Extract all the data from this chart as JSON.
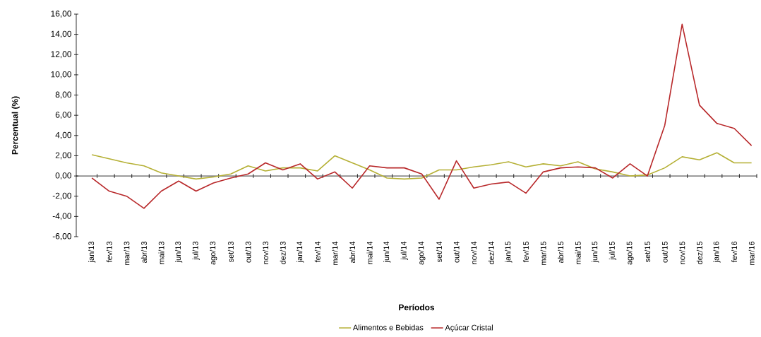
{
  "chart_data": {
    "type": "line",
    "xlabel": "Períodos",
    "ylabel": "Percentual (%)",
    "categories": [
      "jan/13",
      "fev/13",
      "mar/13",
      "abr/13",
      "mai/13",
      "jun/13",
      "jul/13",
      "ago/13",
      "set/13",
      "out/13",
      "nov/13",
      "dez/13",
      "jan/14",
      "fev/14",
      "mar/14",
      "abr/14",
      "mai/14",
      "jun/14",
      "jul/14",
      "ago/14",
      "set/14",
      "out/14",
      "nov/14",
      "dez/14",
      "jan/15",
      "fev/15",
      "mar/15",
      "abr/15",
      "mai/15",
      "jun/15",
      "jul/15",
      "ago/15",
      "set/15",
      "out/15",
      "nov/15",
      "dez/15",
      "jan/16",
      "fev/16",
      "mar/16"
    ],
    "series": [
      {
        "name": "Alimentos e Bebidas",
        "color": "#b5b035",
        "values": [
          2.1,
          1.7,
          1.3,
          1.0,
          0.3,
          0.0,
          -0.3,
          -0.1,
          0.2,
          1.0,
          0.5,
          0.8,
          0.8,
          0.5,
          2.0,
          1.3,
          0.6,
          -0.2,
          -0.3,
          -0.2,
          0.6,
          0.6,
          0.9,
          1.1,
          1.4,
          0.9,
          1.2,
          1.0,
          1.4,
          0.7,
          0.4,
          0.0,
          0.1,
          0.8,
          1.9,
          1.6,
          2.3,
          1.3,
          1.3
        ]
      },
      {
        "name": "Açúcar Cristal",
        "color": "#b8282a",
        "values": [
          -0.2,
          -1.5,
          -2.0,
          -3.2,
          -1.5,
          -0.5,
          -1.5,
          -0.7,
          -0.2,
          0.2,
          1.3,
          0.6,
          1.2,
          -0.3,
          0.4,
          -1.2,
          1.0,
          0.8,
          0.8,
          0.2,
          -2.3,
          1.5,
          -1.2,
          -0.8,
          -0.6,
          -1.7,
          0.4,
          0.8,
          0.9,
          0.8,
          -0.2,
          1.2,
          0.0,
          5.0,
          15.0,
          7.0,
          5.2,
          4.7,
          3.0
        ]
      }
    ],
    "ylim": [
      -6,
      16
    ],
    "yticks": [
      {
        "value": -6,
        "label": "-6,00"
      },
      {
        "value": -4,
        "label": "-4,00"
      },
      {
        "value": -2,
        "label": "-2,00"
      },
      {
        "value": 0,
        "label": "0,00"
      },
      {
        "value": 2,
        "label": "2,00"
      },
      {
        "value": 4,
        "label": "4,00"
      },
      {
        "value": 6,
        "label": "6,00"
      },
      {
        "value": 8,
        "label": "8,00"
      },
      {
        "value": 10,
        "label": "10,00"
      },
      {
        "value": 12,
        "label": "12,00"
      },
      {
        "value": 14,
        "label": "14,00"
      },
      {
        "value": 16,
        "label": "16,00"
      }
    ],
    "ref_lines": [
      {
        "axis": "y",
        "value": 0,
        "color": "#000000"
      }
    ],
    "legend": "bottom",
    "grid": false,
    "marker": "none",
    "line_style": "solid"
  }
}
